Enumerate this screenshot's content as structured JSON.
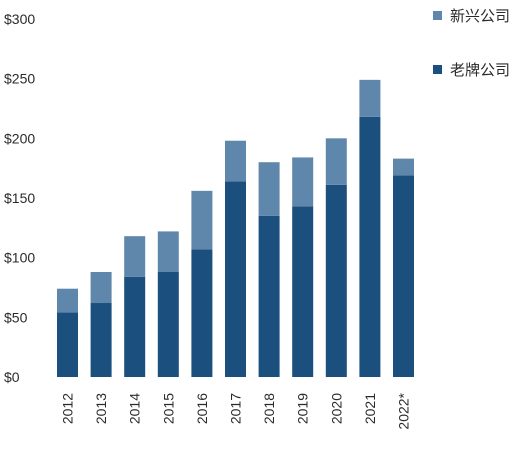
{
  "chart_data": {
    "type": "bar",
    "stacked": true,
    "categories": [
      "2012",
      "2013",
      "2014",
      "2015",
      "2016",
      "2017",
      "2018",
      "2019",
      "2020",
      "2021",
      "2022*"
    ],
    "series": [
      {
        "name": "老牌公司",
        "color": "#1b4f7d",
        "values": [
          54,
          62,
          84,
          88,
          107,
          164,
          135,
          143,
          161,
          218,
          169
        ]
      },
      {
        "name": "新兴公司",
        "color": "#5f86ab",
        "values": [
          20,
          26,
          34,
          34,
          49,
          34,
          45,
          41,
          39,
          31,
          14
        ]
      }
    ],
    "y_ticks": [
      "$0",
      "$50",
      "$100",
      "$150",
      "$200",
      "$250",
      "$300"
    ],
    "ylim": [
      0,
      300
    ],
    "grid": false,
    "legend_position": "top-right",
    "legend_order": [
      "新兴公司",
      "老牌公司"
    ]
  }
}
